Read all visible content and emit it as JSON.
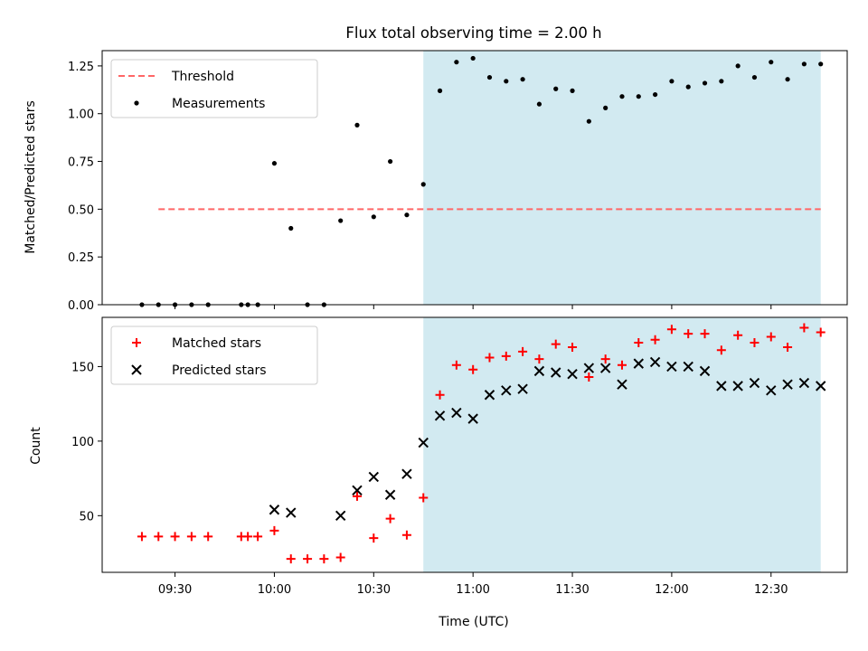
{
  "title": "Flux total observing time = 2.00 h",
  "xlabel": "Time (UTC)",
  "x_ticks": [
    "09:30",
    "10:00",
    "10:30",
    "11:00",
    "11:30",
    "12:00",
    "12:30"
  ],
  "colors": {
    "shade": "#add8e6",
    "threshold": "#ff6666",
    "matched": "#ff0000",
    "predicted": "#000000",
    "measurement": "#000000"
  },
  "chart_data": [
    {
      "type": "scatter",
      "ylabel": "Matched/Predicted stars",
      "xlim": [
        "09:08",
        "12:53"
      ],
      "ylim": [
        0,
        1.33
      ],
      "y_ticks": [
        "0.00",
        "0.25",
        "0.50",
        "0.75",
        "1.00",
        "1.25"
      ],
      "shaded_region": [
        "10:45",
        "12:45"
      ],
      "legend": {
        "placement": "top-left",
        "entries": [
          "Threshold",
          "Measurements"
        ]
      },
      "threshold": {
        "name": "Threshold",
        "x": [
          "09:25",
          "12:45"
        ],
        "y": 0.5
      },
      "series": [
        {
          "name": "Measurements",
          "x": [
            "09:20",
            "09:25",
            "09:30",
            "09:35",
            "09:40",
            "09:50",
            "09:52",
            "09:55",
            "10:00",
            "10:05",
            "10:10",
            "10:15",
            "10:20",
            "10:25",
            "10:30",
            "10:35",
            "10:40",
            "10:45",
            "10:50",
            "10:55",
            "11:00",
            "11:05",
            "11:10",
            "11:15",
            "11:20",
            "11:25",
            "11:30",
            "11:35",
            "11:40",
            "11:45",
            "11:50",
            "11:55",
            "12:00",
            "12:05",
            "12:10",
            "12:15",
            "12:20",
            "12:25",
            "12:30",
            "12:35",
            "12:40",
            "12:45"
          ],
          "y": [
            0,
            0,
            0,
            0,
            0,
            0,
            0,
            0,
            0.74,
            0.4,
            0,
            0,
            0.44,
            0.94,
            0.46,
            0.75,
            0.47,
            0.63,
            1.12,
            1.27,
            1.29,
            1.19,
            1.17,
            1.18,
            1.05,
            1.13,
            1.12,
            0.96,
            1.03,
            1.09,
            1.09,
            1.1,
            1.17,
            1.14,
            1.16,
            1.17,
            1.25,
            1.19,
            1.27,
            1.18,
            1.26,
            1.26
          ]
        }
      ]
    },
    {
      "type": "scatter",
      "ylabel": "Count",
      "xlim": [
        "09:08",
        "12:53"
      ],
      "ylim": [
        12,
        183
      ],
      "y_ticks": [
        "50",
        "100",
        "150"
      ],
      "shaded_region": [
        "10:45",
        "12:45"
      ],
      "legend": {
        "placement": "top-left",
        "entries": [
          "Matched stars",
          "Predicted stars"
        ]
      },
      "series": [
        {
          "name": "Matched stars",
          "marker": "plus",
          "x": [
            "09:20",
            "09:25",
            "09:30",
            "09:35",
            "09:40",
            "09:50",
            "09:52",
            "09:55",
            "10:00",
            "10:05",
            "10:10",
            "10:15",
            "10:20",
            "10:25",
            "10:30",
            "10:35",
            "10:40",
            "10:45",
            "10:50",
            "10:55",
            "11:00",
            "11:05",
            "11:10",
            "11:15",
            "11:20",
            "11:25",
            "11:30",
            "11:35",
            "11:40",
            "11:45",
            "11:50",
            "11:55",
            "12:00",
            "12:05",
            "12:10",
            "12:15",
            "12:20",
            "12:25",
            "12:30",
            "12:35",
            "12:40",
            "12:45"
          ],
          "y": [
            36,
            36,
            36,
            36,
            36,
            36,
            36,
            36,
            40,
            21,
            21,
            21,
            22,
            63,
            35,
            48,
            37,
            62,
            131,
            151,
            148,
            156,
            157,
            160,
            155,
            165,
            163,
            143,
            155,
            151,
            166,
            168,
            175,
            172,
            172,
            161,
            171,
            166,
            170,
            163,
            176,
            173
          ]
        },
        {
          "name": "Predicted stars",
          "marker": "x",
          "x": [
            "10:00",
            "10:05",
            "10:20",
            "10:25",
            "10:30",
            "10:35",
            "10:40",
            "10:45",
            "10:50",
            "10:55",
            "11:00",
            "11:05",
            "11:10",
            "11:15",
            "11:20",
            "11:25",
            "11:30",
            "11:35",
            "11:40",
            "11:45",
            "11:50",
            "11:55",
            "12:00",
            "12:05",
            "12:10",
            "12:15",
            "12:20",
            "12:25",
            "12:30",
            "12:35",
            "12:40",
            "12:45"
          ],
          "y": [
            54,
            52,
            50,
            67,
            76,
            64,
            78,
            99,
            117,
            119,
            115,
            131,
            134,
            135,
            147,
            146,
            145,
            149,
            149,
            138,
            152,
            153,
            150,
            150,
            147,
            137,
            137,
            139,
            134,
            138,
            139,
            137
          ]
        }
      ]
    }
  ]
}
